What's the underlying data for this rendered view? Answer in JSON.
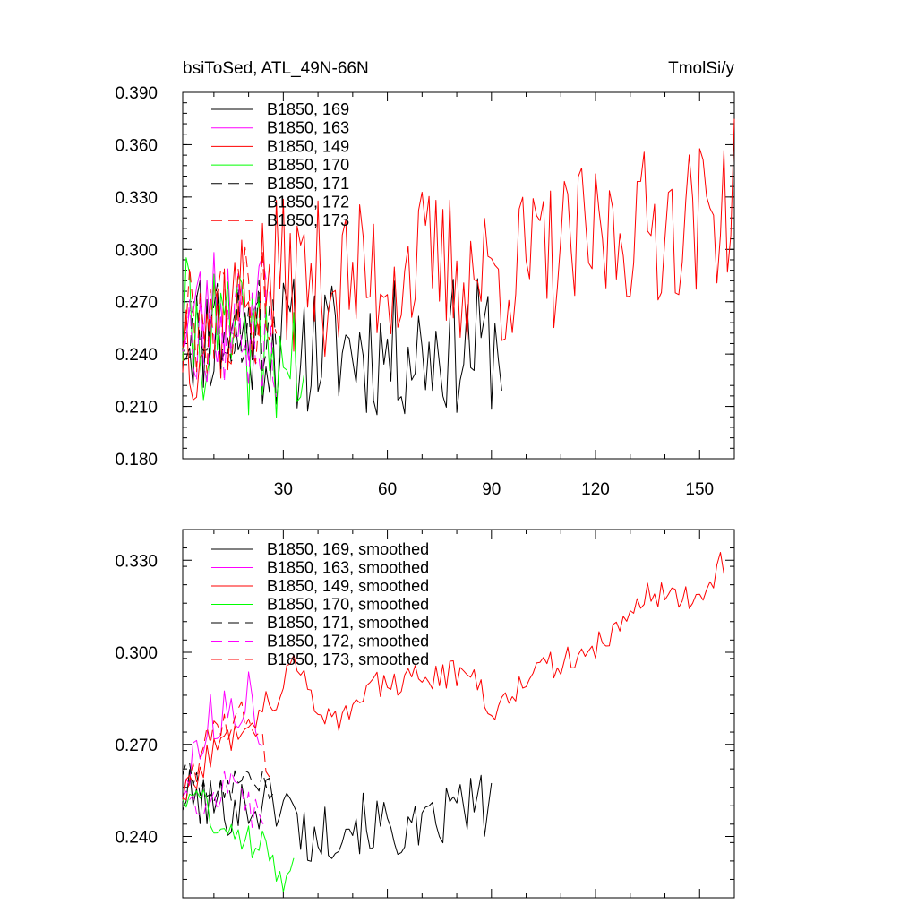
{
  "chart_data": [
    {
      "type": "line",
      "title_left": "bsiToSed, ATL_49N-66N",
      "title_right": "TmolSi/y",
      "xlabel": "",
      "ylabel": "",
      "xlim": [
        1,
        160
      ],
      "ylim": [
        0.18,
        0.39
      ],
      "xticks": [
        30,
        60,
        90,
        120,
        150
      ],
      "xtick_labels": [
        "30",
        "60",
        "90",
        "120",
        "150"
      ],
      "yticks": [
        0.18,
        0.21,
        0.24,
        0.27,
        0.3,
        0.33,
        0.36,
        0.39
      ],
      "ytick_labels": [
        "0.180",
        "0.210",
        "0.240",
        "0.270",
        "0.300",
        "0.330",
        "0.360",
        "0.390"
      ],
      "legend_position": "top-left",
      "series": [
        {
          "name": "B1850, 169",
          "color": "#000000",
          "dash": "solid",
          "start": 1,
          "n": 93,
          "seed": 11,
          "base": [
            [
              1,
              0.256
            ],
            [
              20,
              0.25
            ],
            [
              35,
              0.245
            ],
            [
              60,
              0.242
            ],
            [
              93,
              0.246
            ]
          ],
          "noise": 0.04
        },
        {
          "name": "B1850, 163",
          "color": "#ff00ff",
          "dash": "solid",
          "start": 1,
          "n": 25,
          "seed": 23,
          "base": [
            [
              1,
              0.258
            ],
            [
              10,
              0.27
            ],
            [
              25,
              0.268
            ]
          ],
          "noise": 0.035
        },
        {
          "name": "B1850, 149",
          "color": "#ff0000",
          "dash": "solid",
          "start": 1,
          "n": 160,
          "seed": 37,
          "base": [
            [
              1,
              0.252
            ],
            [
              10,
              0.262
            ],
            [
              30,
              0.286
            ],
            [
              50,
              0.282
            ],
            [
              70,
              0.292
            ],
            [
              90,
              0.285
            ],
            [
              110,
              0.298
            ],
            [
              130,
              0.312
            ],
            [
              150,
              0.318
            ],
            [
              160,
              0.33
            ]
          ],
          "noise": 0.045
        },
        {
          "name": "B1850, 170",
          "color": "#00ff00",
          "dash": "solid",
          "start": 1,
          "n": 36,
          "seed": 41,
          "base": [
            [
              1,
              0.256
            ],
            [
              20,
              0.245
            ],
            [
              36,
              0.232
            ]
          ],
          "noise": 0.04
        },
        {
          "name": "B1850, 171",
          "color": "#000000",
          "dash": "dashed",
          "start": 1,
          "n": 28,
          "seed": 53,
          "base": [
            [
              1,
              0.262
            ],
            [
              28,
              0.256
            ]
          ],
          "noise": 0.03
        },
        {
          "name": "B1850, 172",
          "color": "#ff00ff",
          "dash": "dashed",
          "start": 1,
          "n": 28,
          "seed": 67,
          "base": [
            [
              1,
              0.258
            ],
            [
              28,
              0.25
            ]
          ],
          "noise": 0.035
        },
        {
          "name": "B1850, 173",
          "color": "#ff0000",
          "dash": "dashed",
          "start": 1,
          "n": 28,
          "seed": 79,
          "base": [
            [
              1,
              0.26
            ],
            [
              28,
              0.272
            ]
          ],
          "noise": 0.035
        }
      ]
    },
    {
      "type": "line",
      "title_left": "",
      "title_right": "",
      "xlabel": "",
      "ylabel": "",
      "xlim": [
        1,
        160
      ],
      "ylim": [
        0.22,
        0.34
      ],
      "xticks": [
        30,
        60,
        90,
        120,
        150
      ],
      "xtick_labels": [],
      "yticks": [
        0.24,
        0.27,
        0.3,
        0.33
      ],
      "ytick_labels": [
        "0.240",
        "0.270",
        "0.300",
        "0.330"
      ],
      "legend_position": "top-left",
      "series": [
        {
          "name": "B1850, 169, smoothed",
          "color": "#000000",
          "dash": "solid",
          "start": 1,
          "n": 90,
          "seed": 101,
          "base": [
            [
              1,
              0.253
            ],
            [
              10,
              0.25
            ],
            [
              20,
              0.25
            ],
            [
              30,
              0.252
            ],
            [
              38,
              0.238
            ],
            [
              48,
              0.245
            ],
            [
              60,
              0.243
            ],
            [
              70,
              0.24
            ],
            [
              80,
              0.25
            ],
            [
              90,
              0.25
            ]
          ],
          "noise": 0.01
        },
        {
          "name": "B1850, 163, smoothed",
          "color": "#ff00ff",
          "dash": "solid",
          "start": 1,
          "n": 24,
          "seed": 113,
          "base": [
            [
              1,
              0.255
            ],
            [
              8,
              0.278
            ],
            [
              15,
              0.28
            ],
            [
              20,
              0.288
            ],
            [
              24,
              0.272
            ]
          ],
          "noise": 0.008
        },
        {
          "name": "B1850, 149, smoothed",
          "color": "#ff0000",
          "dash": "solid",
          "start": 1,
          "n": 157,
          "seed": 127,
          "base": [
            [
              1,
              0.254
            ],
            [
              10,
              0.268
            ],
            [
              20,
              0.278
            ],
            [
              30,
              0.288
            ],
            [
              33,
              0.297
            ],
            [
              40,
              0.283
            ],
            [
              45,
              0.278
            ],
            [
              55,
              0.288
            ],
            [
              70,
              0.292
            ],
            [
              85,
              0.294
            ],
            [
              90,
              0.28
            ],
            [
              100,
              0.293
            ],
            [
              115,
              0.298
            ],
            [
              125,
              0.306
            ],
            [
              135,
              0.32
            ],
            [
              145,
              0.318
            ],
            [
              152,
              0.318
            ],
            [
              157,
              0.33
            ]
          ],
          "noise": 0.005
        },
        {
          "name": "B1850, 170, smoothed",
          "color": "#00ff00",
          "dash": "solid",
          "start": 1,
          "n": 33,
          "seed": 131,
          "base": [
            [
              1,
              0.255
            ],
            [
              8,
              0.25
            ],
            [
              15,
              0.238
            ],
            [
              25,
              0.24
            ],
            [
              29,
              0.228
            ],
            [
              33,
              0.232
            ]
          ],
          "noise": 0.007
        },
        {
          "name": "B1850, 171, smoothed",
          "color": "#000000",
          "dash": "dashed",
          "start": 1,
          "n": 27,
          "seed": 149,
          "base": [
            [
              1,
              0.262
            ],
            [
              10,
              0.255
            ],
            [
              20,
              0.258
            ],
            [
              27,
              0.256
            ]
          ],
          "noise": 0.005
        },
        {
          "name": "B1850, 172, smoothed",
          "color": "#ff00ff",
          "dash": "dashed",
          "start": 1,
          "n": 25,
          "seed": 157,
          "base": [
            [
              1,
              0.255
            ],
            [
              8,
              0.252
            ],
            [
              15,
              0.257
            ],
            [
              25,
              0.243
            ]
          ],
          "noise": 0.006
        },
        {
          "name": "B1850, 173, smoothed",
          "color": "#ff0000",
          "dash": "dashed",
          "start": 1,
          "n": 26,
          "seed": 163,
          "base": [
            [
              1,
              0.255
            ],
            [
              8,
              0.27
            ],
            [
              15,
              0.278
            ],
            [
              20,
              0.282
            ],
            [
              26,
              0.262
            ]
          ],
          "noise": 0.006
        }
      ]
    }
  ]
}
